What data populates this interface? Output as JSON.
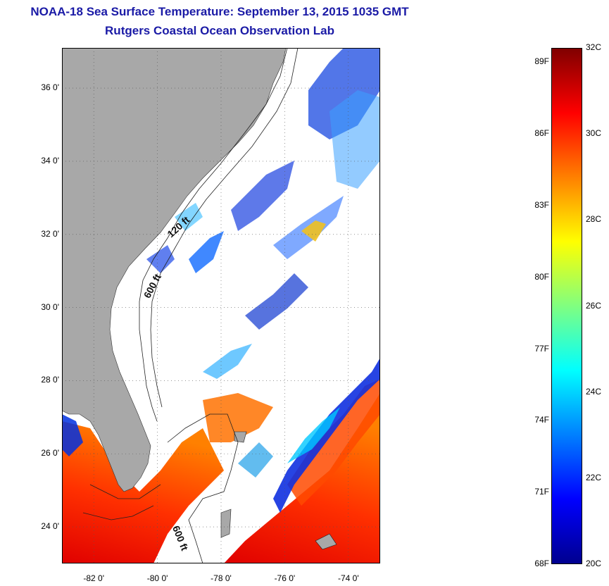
{
  "header": {
    "title": "NOAA-18 Sea Surface Temperature:  September 13, 2015 1035 GMT",
    "subtitle": "Rutgers Coastal Ocean Observation Lab"
  },
  "map": {
    "latitude_labels": [
      "36 0'",
      "34 0'",
      "32 0'",
      "30 0'",
      "28 0'",
      "26 0'",
      "24 0'"
    ],
    "latitude_values": [
      36,
      34,
      32,
      30,
      28,
      26,
      24
    ],
    "longitude_labels": [
      "-82 0'",
      "-80 0'",
      "-78 0'",
      "-76 0'",
      "-74 0'"
    ],
    "longitude_values": [
      -82,
      -80,
      -78,
      -76,
      -74
    ],
    "extent": {
      "lon_min": -83,
      "lon_max": -73,
      "lat_min": 23,
      "lat_max": 37.1
    },
    "grid": "dotted",
    "contour_labels": [
      "120 ft",
      "600 ft",
      "600 ft"
    ],
    "colors": {
      "land": "#a8a8a8",
      "cloud_mask": "#ffffff",
      "contours": "#222222"
    }
  },
  "colorbar": {
    "fahrenheit_labels": [
      "89F",
      "86F",
      "83F",
      "80F",
      "77F",
      "74F",
      "71F",
      "68F"
    ],
    "fahrenheit_values": [
      89,
      86,
      83,
      80,
      77,
      74,
      71,
      68
    ],
    "celsius_labels": [
      "32C",
      "30C",
      "28C",
      "26C",
      "24C",
      "22C",
      "20C"
    ],
    "celsius_values": [
      32,
      30,
      28,
      26,
      24,
      22,
      20
    ],
    "range_c": [
      20,
      32
    ],
    "colormap": [
      "#00008f",
      "#0000ff",
      "#0080ff",
      "#00ffff",
      "#80ff80",
      "#ffff00",
      "#ff8000",
      "#ff0000",
      "#800000"
    ]
  }
}
